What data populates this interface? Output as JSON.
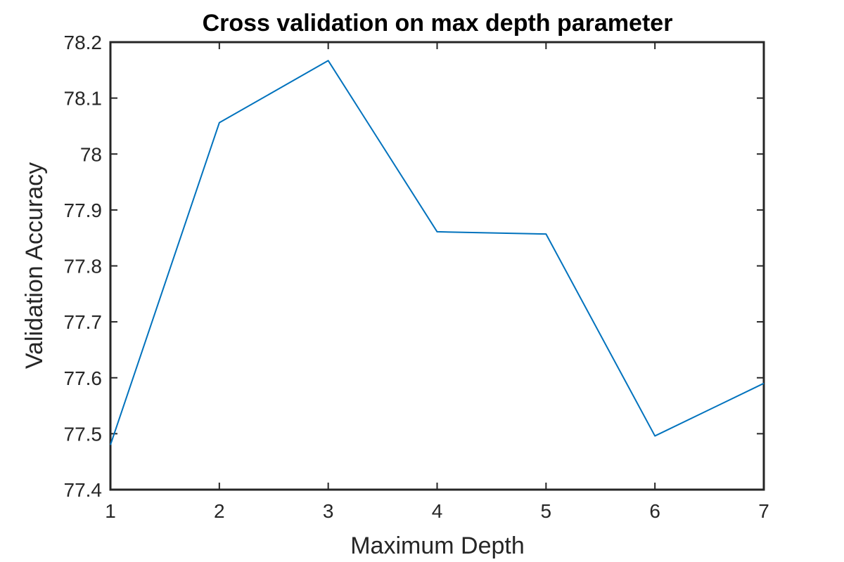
{
  "chart_data": {
    "type": "line",
    "title": "Cross validation on max depth parameter",
    "xlabel": "Maximum Depth",
    "ylabel": "Validation Accuracy",
    "x": [
      1,
      2,
      3,
      4,
      5,
      6,
      7
    ],
    "series": [
      {
        "values": [
          77.48,
          78.056,
          78.167,
          77.861,
          77.857,
          77.496,
          77.59
        ]
      }
    ],
    "xlim": [
      1,
      7
    ],
    "ylim": [
      77.4,
      78.2
    ],
    "xticks": [
      "1",
      "2",
      "3",
      "4",
      "5",
      "6",
      "7"
    ],
    "yticks": [
      "77.4",
      "77.5",
      "77.6",
      "77.7",
      "77.8",
      "77.9",
      "78",
      "78.1",
      "78.2"
    ],
    "grid": false,
    "line_color": "#0072BD",
    "axis_color": "#262626"
  }
}
